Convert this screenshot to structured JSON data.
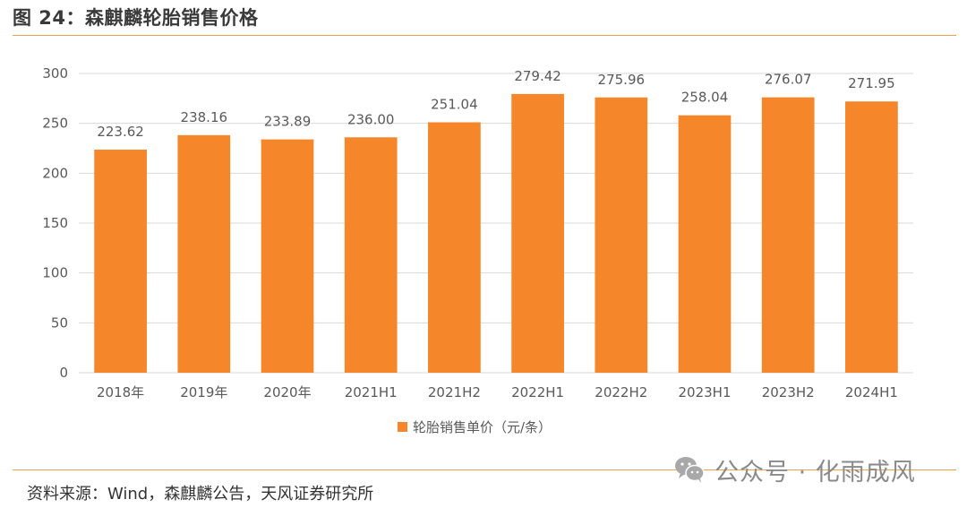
{
  "figure": {
    "title": "图 24：森麒麟轮胎销售价格",
    "source": "资料来源：Wind，森麒麟公告，天风证券研究所",
    "watermark": "公众号 · 化雨成风",
    "watermark_icon": "wechat-icon"
  },
  "colors": {
    "bar": "#f5862a",
    "rule": "#f0a04b",
    "grid": "#d9d9d9",
    "text": "#595959"
  },
  "chart_data": {
    "type": "bar",
    "categories": [
      "2018年",
      "2019年",
      "2020年",
      "2021H1",
      "2021H2",
      "2022H1",
      "2022H2",
      "2023H1",
      "2023H2",
      "2024H1"
    ],
    "series": [
      {
        "name": "轮胎销售单价（元/条）",
        "values": [
          223.62,
          238.16,
          233.89,
          236.0,
          251.04,
          279.42,
          275.96,
          258.04,
          276.07,
          271.95
        ],
        "labels": [
          "223.62",
          "238.16",
          "233.89",
          "236.00",
          "251.04",
          "279.42",
          "275.96",
          "258.04",
          "276.07",
          "271.95"
        ]
      }
    ],
    "ylim": [
      0,
      300
    ],
    "yticks": [
      0,
      50,
      100,
      150,
      200,
      250,
      300
    ],
    "grid": true,
    "legend_position": "bottom"
  }
}
